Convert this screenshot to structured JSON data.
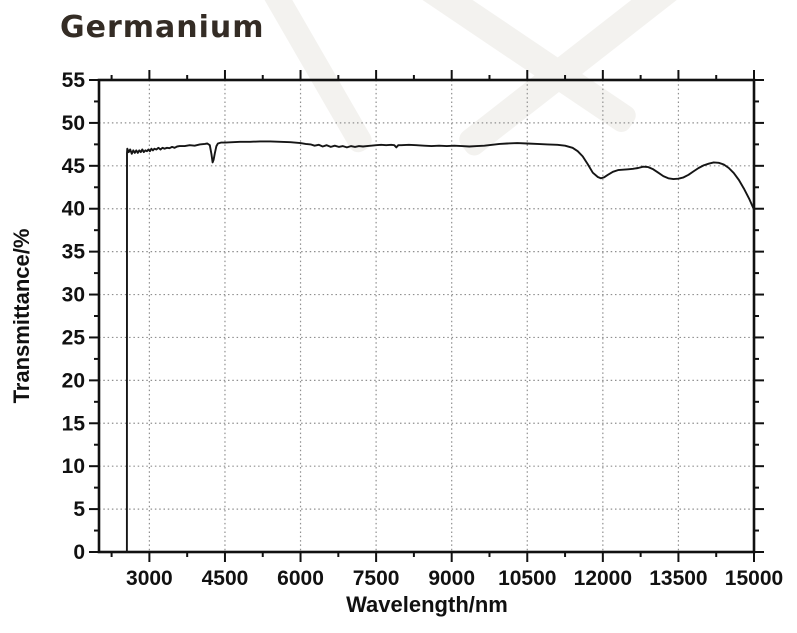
{
  "title": "Germanium",
  "colors": {
    "background": "#ffffff",
    "curve": "#151515",
    "grid": "#8f8f8f",
    "axis": "#111111",
    "tick_text": "#111111",
    "title_text": "#342c25",
    "watermark": "#f3f2ef"
  },
  "chart_data": {
    "type": "line",
    "title": "Germanium",
    "xlabel": "Wavelength/nm",
    "ylabel": "Transmittance/%",
    "xlim": [
      2000,
      15000
    ],
    "ylim": [
      0,
      55
    ],
    "xticks": [
      3000,
      4500,
      6000,
      7500,
      9000,
      10500,
      12000,
      13500,
      15000
    ],
    "yticks": [
      0,
      5,
      10,
      15,
      20,
      25,
      30,
      35,
      40,
      45,
      50,
      55
    ],
    "x_minor_step": 750,
    "y_minor_step": 2.5,
    "grid": "dotted major gridlines, both axes",
    "legend": "none",
    "tick_direction": "out",
    "series": [
      {
        "name": "Germanium transmittance",
        "points": [
          [
            2553,
            0
          ],
          [
            2556,
            46.5
          ],
          [
            2562,
            47.0
          ],
          [
            2590,
            46.6
          ],
          [
            2620,
            46.9
          ],
          [
            2650,
            46.4
          ],
          [
            2680,
            46.8
          ],
          [
            2710,
            46.5
          ],
          [
            2740,
            46.8
          ],
          [
            2770,
            46.5
          ],
          [
            2800,
            46.8
          ],
          [
            2830,
            46.6
          ],
          [
            2860,
            46.9
          ],
          [
            2890,
            46.6
          ],
          [
            2920,
            46.8
          ],
          [
            2950,
            46.7
          ],
          [
            2980,
            46.9
          ],
          [
            3010,
            46.7
          ],
          [
            3040,
            47.0
          ],
          [
            3070,
            46.8
          ],
          [
            3100,
            47.0
          ],
          [
            3140,
            46.9
          ],
          [
            3180,
            47.1
          ],
          [
            3220,
            46.9
          ],
          [
            3260,
            47.1
          ],
          [
            3300,
            47.0
          ],
          [
            3350,
            47.1
          ],
          [
            3400,
            47.05
          ],
          [
            3450,
            47.2
          ],
          [
            3500,
            47.1
          ],
          [
            3550,
            47.25
          ],
          [
            3600,
            47.3
          ],
          [
            3700,
            47.3
          ],
          [
            3800,
            47.4
          ],
          [
            3900,
            47.35
          ],
          [
            4000,
            47.5
          ],
          [
            4100,
            47.55
          ],
          [
            4150,
            47.6
          ],
          [
            4200,
            47.4
          ],
          [
            4230,
            46.4
          ],
          [
            4255,
            45.4
          ],
          [
            4275,
            45.7
          ],
          [
            4300,
            46.5
          ],
          [
            4330,
            47.3
          ],
          [
            4360,
            47.6
          ],
          [
            4420,
            47.7
          ],
          [
            4500,
            47.7
          ],
          [
            4650,
            47.75
          ],
          [
            4800,
            47.8
          ],
          [
            5000,
            47.8
          ],
          [
            5200,
            47.85
          ],
          [
            5400,
            47.85
          ],
          [
            5600,
            47.8
          ],
          [
            5800,
            47.75
          ],
          [
            6000,
            47.65
          ],
          [
            6100,
            47.55
          ],
          [
            6200,
            47.5
          ],
          [
            6280,
            47.35
          ],
          [
            6360,
            47.45
          ],
          [
            6440,
            47.25
          ],
          [
            6520,
            47.4
          ],
          [
            6600,
            47.2
          ],
          [
            6680,
            47.35
          ],
          [
            6760,
            47.2
          ],
          [
            6840,
            47.3
          ],
          [
            6920,
            47.15
          ],
          [
            7000,
            47.3
          ],
          [
            7080,
            47.2
          ],
          [
            7160,
            47.3
          ],
          [
            7240,
            47.25
          ],
          [
            7320,
            47.3
          ],
          [
            7400,
            47.35
          ],
          [
            7500,
            47.4
          ],
          [
            7600,
            47.45
          ],
          [
            7700,
            47.4
          ],
          [
            7800,
            47.45
          ],
          [
            7860,
            47.4
          ],
          [
            7900,
            47.15
          ],
          [
            7940,
            47.4
          ],
          [
            8000,
            47.4
          ],
          [
            8150,
            47.45
          ],
          [
            8300,
            47.4
          ],
          [
            8450,
            47.35
          ],
          [
            8600,
            47.3
          ],
          [
            8750,
            47.35
          ],
          [
            8900,
            47.3
          ],
          [
            9050,
            47.35
          ],
          [
            9200,
            47.3
          ],
          [
            9350,
            47.25
          ],
          [
            9500,
            47.3
          ],
          [
            9650,
            47.35
          ],
          [
            9800,
            47.45
          ],
          [
            9950,
            47.55
          ],
          [
            10100,
            47.6
          ],
          [
            10300,
            47.65
          ],
          [
            10500,
            47.6
          ],
          [
            10700,
            47.55
          ],
          [
            10900,
            47.5
          ],
          [
            11100,
            47.45
          ],
          [
            11250,
            47.35
          ],
          [
            11400,
            47.1
          ],
          [
            11500,
            46.7
          ],
          [
            11600,
            46.1
          ],
          [
            11700,
            45.2
          ],
          [
            11800,
            44.2
          ],
          [
            11900,
            43.7
          ],
          [
            11960,
            43.55
          ],
          [
            12020,
            43.65
          ],
          [
            12100,
            43.95
          ],
          [
            12200,
            44.3
          ],
          [
            12300,
            44.5
          ],
          [
            12400,
            44.55
          ],
          [
            12500,
            44.6
          ],
          [
            12600,
            44.65
          ],
          [
            12700,
            44.75
          ],
          [
            12800,
            44.9
          ],
          [
            12900,
            44.85
          ],
          [
            13000,
            44.6
          ],
          [
            13100,
            44.2
          ],
          [
            13200,
            43.8
          ],
          [
            13300,
            43.55
          ],
          [
            13400,
            43.45
          ],
          [
            13500,
            43.5
          ],
          [
            13600,
            43.65
          ],
          [
            13700,
            43.95
          ],
          [
            13800,
            44.35
          ],
          [
            13900,
            44.75
          ],
          [
            14000,
            45.05
          ],
          [
            14100,
            45.25
          ],
          [
            14200,
            45.4
          ],
          [
            14300,
            45.35
          ],
          [
            14400,
            45.15
          ],
          [
            14500,
            44.75
          ],
          [
            14600,
            44.15
          ],
          [
            14700,
            43.35
          ],
          [
            14800,
            42.35
          ],
          [
            14900,
            41.2
          ],
          [
            15000,
            39.9
          ]
        ]
      }
    ]
  }
}
